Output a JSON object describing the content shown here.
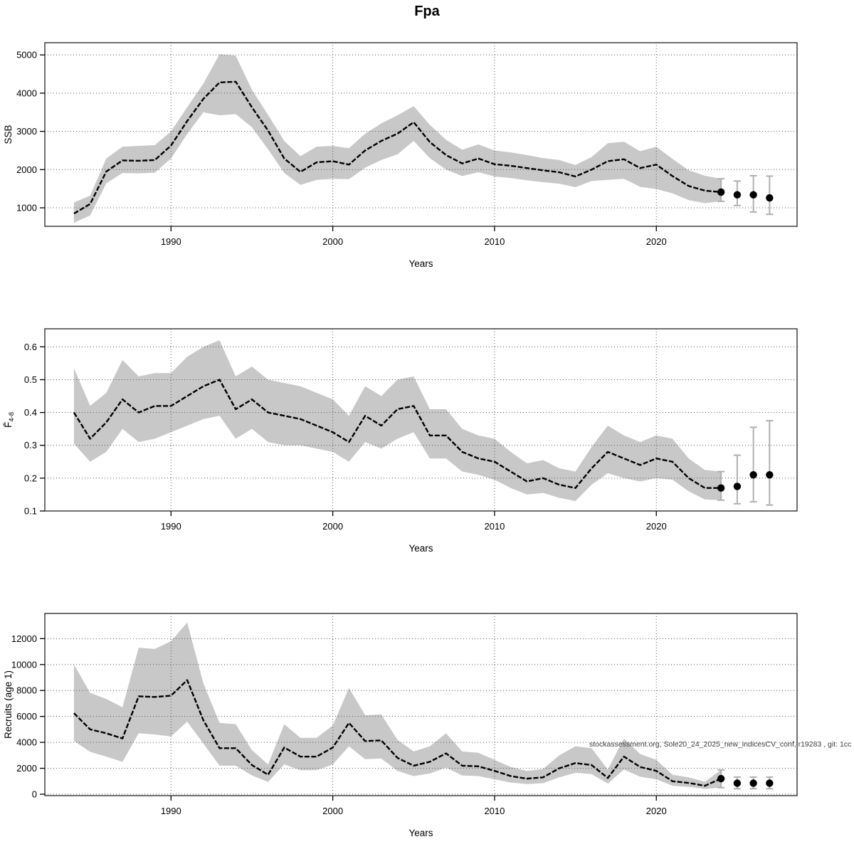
{
  "title": "Fpa",
  "watermark": "stockassessment.org, Sole20_24_2025_new_indicesCV_conf, r19283 , git: 1cc",
  "colors": {
    "band": "#c8c8c8",
    "estimate_line": "#000000",
    "error_bar": "#b0b0b0",
    "dot": "#000000",
    "grid": "#555555",
    "frame": "#333333",
    "text": "#000000",
    "watermark": "#404040"
  },
  "chart_data": [
    {
      "type": "line",
      "name": "ssb",
      "ylabel": "SSB",
      "xlabel": "Years",
      "xticks": [
        1990,
        2000,
        2010,
        2020
      ],
      "xtick_labels": [
        "1990",
        "2000",
        "2010",
        "2020"
      ],
      "xlim": [
        1982.2,
        2028.7
      ],
      "yticks": [
        1000,
        2000,
        3000,
        4000,
        5000
      ],
      "ytick_labels": [
        "1000",
        "2000",
        "3000",
        "4000",
        "5000"
      ],
      "ylim": [
        516,
        5320
      ],
      "grid": "dotted",
      "years": [
        1984,
        1985,
        1986,
        1987,
        1988,
        1989,
        1990,
        1991,
        1992,
        1993,
        1994,
        1995,
        1996,
        1997,
        1998,
        1999,
        2000,
        2001,
        2002,
        2003,
        2004,
        2005,
        2006,
        2007,
        2008,
        2009,
        2010,
        2011,
        2012,
        2013,
        2014,
        2015,
        2016,
        2017,
        2018,
        2019,
        2020,
        2021,
        2022,
        2023,
        2024
      ],
      "values": [
        850,
        1100,
        1950,
        2240,
        2230,
        2250,
        2630,
        3270,
        3850,
        4280,
        4300,
        3630,
        3020,
        2290,
        1940,
        2190,
        2220,
        2130,
        2500,
        2750,
        2940,
        3240,
        2720,
        2380,
        2160,
        2290,
        2140,
        2100,
        2040,
        1980,
        1930,
        1820,
        2000,
        2220,
        2270,
        2040,
        2130,
        1830,
        1570,
        1450,
        1410
      ],
      "band_lower": [
        610,
        800,
        1640,
        1910,
        1900,
        1920,
        2290,
        2930,
        3500,
        3420,
        3450,
        3110,
        2530,
        1910,
        1600,
        1730,
        1760,
        1750,
        2050,
        2250,
        2400,
        2750,
        2300,
        2000,
        1830,
        1930,
        1820,
        1780,
        1720,
        1670,
        1630,
        1540,
        1700,
        1730,
        1760,
        1550,
        1490,
        1380,
        1200,
        1120,
        1170
      ],
      "band_upper": [
        1140,
        1320,
        2290,
        2600,
        2620,
        2640,
        3000,
        3630,
        4250,
        5020,
        4980,
        4090,
        3430,
        2750,
        2350,
        2600,
        2620,
        2560,
        2940,
        3210,
        3420,
        3660,
        3170,
        2780,
        2520,
        2660,
        2500,
        2450,
        2380,
        2300,
        2250,
        2120,
        2330,
        2690,
        2730,
        2480,
        2600,
        2280,
        1980,
        1840,
        1760
      ],
      "forecast": {
        "years": [
          2024,
          2025,
          2026,
          2027
        ],
        "values": [
          1410,
          1340,
          1340,
          1260
        ],
        "err_low": [
          1170,
          1060,
          890,
          830
        ],
        "err_high": [
          1760,
          1700,
          1840,
          1830
        ]
      }
    },
    {
      "type": "line",
      "name": "fbar",
      "ylabel": "F̄",
      "ylabel_sub": "4-8",
      "xlabel": "Years",
      "xticks": [
        1990,
        2000,
        2010,
        2020
      ],
      "xtick_labels": [
        "1990",
        "2000",
        "2010",
        "2020"
      ],
      "xlim": [
        1982.2,
        2028.7
      ],
      "yticks": [
        0.1,
        0.2,
        0.3,
        0.4,
        0.5,
        0.6
      ],
      "ytick_labels": [
        "0.1",
        "0.2",
        "0.3",
        "0.4",
        "0.5",
        "0.6"
      ],
      "ylim": [
        0.1,
        0.655
      ],
      "grid": "dotted",
      "years": [
        1984,
        1985,
        1986,
        1987,
        1988,
        1989,
        1990,
        1991,
        1992,
        1993,
        1994,
        1995,
        1996,
        1997,
        1998,
        1999,
        2000,
        2001,
        2002,
        2003,
        2004,
        2005,
        2006,
        2007,
        2008,
        2009,
        2010,
        2011,
        2012,
        2013,
        2014,
        2015,
        2016,
        2017,
        2018,
        2019,
        2020,
        2021,
        2022,
        2023,
        2024
      ],
      "values": [
        0.4,
        0.32,
        0.37,
        0.44,
        0.4,
        0.42,
        0.42,
        0.45,
        0.48,
        0.5,
        0.41,
        0.44,
        0.4,
        0.39,
        0.38,
        0.36,
        0.34,
        0.31,
        0.39,
        0.36,
        0.41,
        0.42,
        0.33,
        0.33,
        0.28,
        0.26,
        0.25,
        0.22,
        0.19,
        0.2,
        0.18,
        0.17,
        0.23,
        0.28,
        0.26,
        0.24,
        0.26,
        0.25,
        0.2,
        0.17,
        0.17
      ],
      "band_lower": [
        0.305,
        0.25,
        0.28,
        0.35,
        0.31,
        0.32,
        0.34,
        0.36,
        0.38,
        0.39,
        0.32,
        0.35,
        0.31,
        0.3,
        0.3,
        0.29,
        0.28,
        0.25,
        0.31,
        0.29,
        0.32,
        0.34,
        0.26,
        0.26,
        0.22,
        0.21,
        0.195,
        0.17,
        0.15,
        0.155,
        0.14,
        0.13,
        0.18,
        0.215,
        0.2,
        0.19,
        0.2,
        0.195,
        0.16,
        0.135,
        0.133
      ],
      "band_upper": [
        0.535,
        0.42,
        0.46,
        0.56,
        0.51,
        0.52,
        0.52,
        0.57,
        0.6,
        0.62,
        0.51,
        0.54,
        0.5,
        0.49,
        0.48,
        0.46,
        0.44,
        0.39,
        0.48,
        0.45,
        0.5,
        0.51,
        0.41,
        0.41,
        0.35,
        0.33,
        0.32,
        0.28,
        0.245,
        0.255,
        0.23,
        0.22,
        0.295,
        0.36,
        0.33,
        0.31,
        0.33,
        0.32,
        0.26,
        0.225,
        0.22
      ],
      "forecast": {
        "years": [
          2024,
          2025,
          2026,
          2027
        ],
        "values": [
          0.17,
          0.175,
          0.21,
          0.21
        ],
        "err_low": [
          0.133,
          0.122,
          0.128,
          0.118
        ],
        "err_high": [
          0.22,
          0.27,
          0.355,
          0.375
        ]
      }
    },
    {
      "type": "line",
      "name": "recruits",
      "ylabel": "Recruits (age 1)",
      "xlabel": "Years",
      "xticks": [
        1990,
        2000,
        2010,
        2020
      ],
      "xtick_labels": [
        "1990",
        "2000",
        "2010",
        "2020"
      ],
      "xlim": [
        1982.2,
        2028.7
      ],
      "yticks": [
        0,
        2000,
        4000,
        6000,
        8000,
        10000,
        12000
      ],
      "ytick_labels": [
        "0",
        "2000",
        "4000",
        "6000",
        "8000",
        "10000",
        "12000"
      ],
      "ylim": [
        -110,
        13940
      ],
      "grid": "dotted",
      "years": [
        1984,
        1985,
        1986,
        1987,
        1988,
        1989,
        1990,
        1991,
        1992,
        1993,
        1994,
        1995,
        1996,
        1997,
        1998,
        1999,
        2000,
        2001,
        2002,
        2003,
        2004,
        2005,
        2006,
        2007,
        2008,
        2009,
        2010,
        2011,
        2012,
        2013,
        2014,
        2015,
        2016,
        2017,
        2018,
        2019,
        2020,
        2021,
        2022,
        2023,
        2024
      ],
      "values": [
        6250,
        5000,
        4700,
        4300,
        7550,
        7500,
        7600,
        8800,
        5700,
        3550,
        3550,
        2250,
        1500,
        3600,
        2900,
        2900,
        3600,
        5500,
        4100,
        4150,
        2800,
        2200,
        2500,
        3150,
        2200,
        2150,
        1800,
        1400,
        1200,
        1300,
        2000,
        2400,
        2250,
        1250,
        2900,
        2100,
        1800,
        1000,
        870,
        650,
        1200
      ],
      "band_lower": [
        4100,
        3270,
        2900,
        2500,
        4700,
        4600,
        4450,
        5600,
        3900,
        2200,
        2200,
        1450,
        950,
        2300,
        1850,
        1850,
        2300,
        3700,
        2700,
        2750,
        1800,
        1400,
        1600,
        2050,
        1450,
        1400,
        1150,
        900,
        780,
        850,
        1300,
        1650,
        1550,
        820,
        1900,
        1350,
        1150,
        650,
        560,
        420,
        510
      ],
      "band_upper": [
        10000,
        7820,
        7350,
        6700,
        11300,
        11200,
        11800,
        13250,
        8550,
        5500,
        5400,
        3400,
        2300,
        5400,
        4350,
        4350,
        5300,
        8200,
        6100,
        6150,
        4200,
        3300,
        3700,
        4700,
        3300,
        3200,
        2650,
        2100,
        1800,
        1950,
        3000,
        3700,
        3550,
        1900,
        4300,
        3100,
        2650,
        1500,
        1300,
        950,
        1870
      ],
      "forecast": {
        "years": [
          2024,
          2025,
          2026,
          2027
        ],
        "values": [
          1200,
          850,
          850,
          850
        ],
        "err_low": [
          510,
          420,
          420,
          420
        ],
        "err_high": [
          1870,
          1320,
          1320,
          1320
        ]
      }
    }
  ]
}
